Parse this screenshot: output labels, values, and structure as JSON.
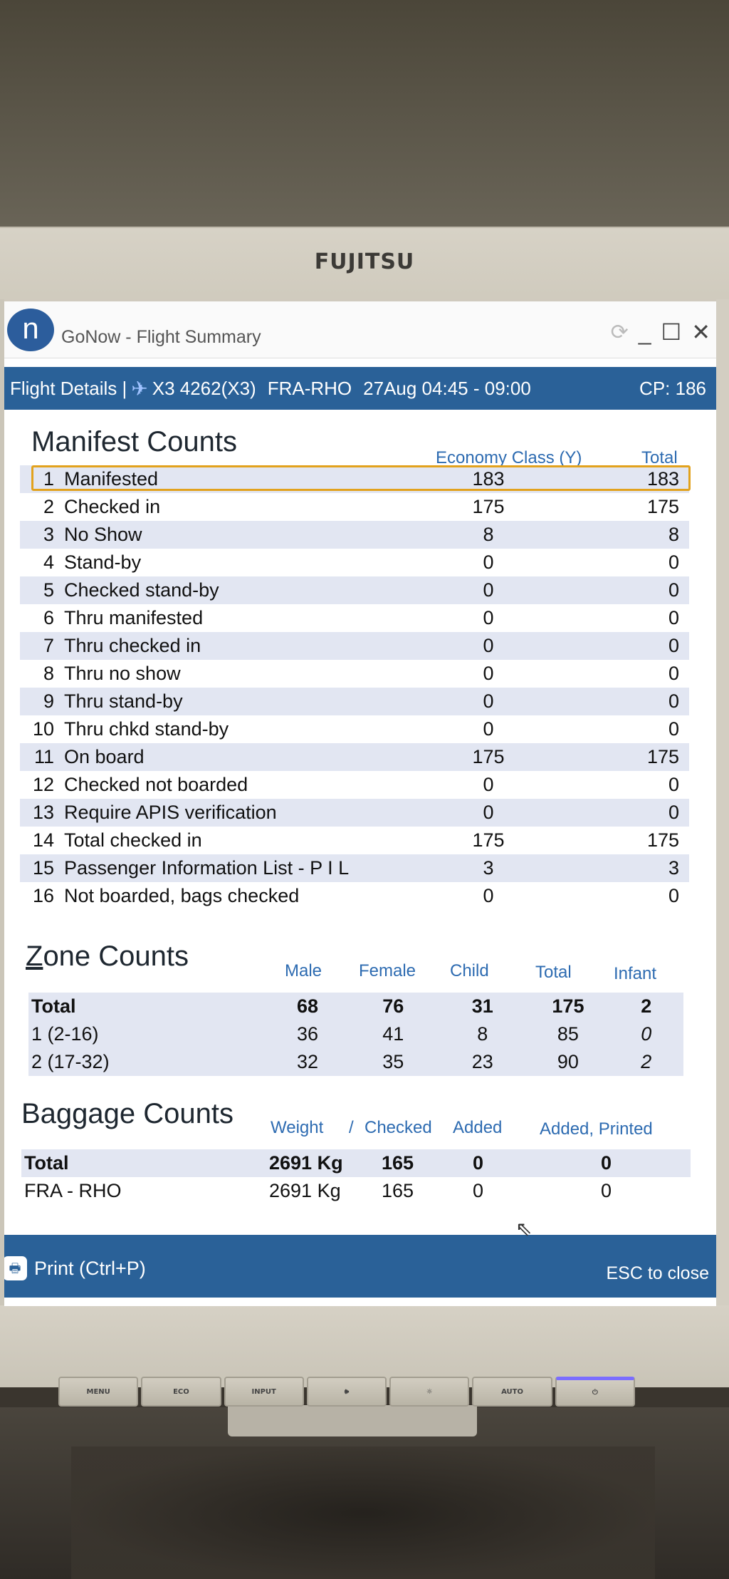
{
  "monitor": {
    "brand": "FUJITSU",
    "buttons": [
      "MENU",
      "ECO",
      "INPUT",
      "🕪",
      "☼",
      "AUTO",
      "⏻"
    ]
  },
  "window": {
    "logo": "n",
    "title": "GoNow - Flight Summary",
    "controls": {
      "refresh": "⟳",
      "minimize": "_",
      "maximize": "☐",
      "close": "✕"
    }
  },
  "header": {
    "label": "Flight Details |",
    "flight": "X3 4262(X3)",
    "route": "FRA-RHO",
    "date": "27Aug 04:45 - 09:00",
    "cp": "CP: 186"
  },
  "manifest": {
    "title": "Manifest Counts",
    "columns": [
      "Economy Class (Y)",
      "Total"
    ],
    "rows": [
      {
        "n": "1",
        "label": "Manifested",
        "economy": "183",
        "total": "183"
      },
      {
        "n": "2",
        "label": "Checked in",
        "economy": "175",
        "total": "175"
      },
      {
        "n": "3",
        "label": "No Show",
        "economy": "8",
        "total": "8"
      },
      {
        "n": "4",
        "label": "Stand-by",
        "economy": "0",
        "total": "0"
      },
      {
        "n": "5",
        "label": "Checked stand-by",
        "economy": "0",
        "total": "0"
      },
      {
        "n": "6",
        "label": "Thru manifested",
        "economy": "0",
        "total": "0"
      },
      {
        "n": "7",
        "label": "Thru checked in",
        "economy": "0",
        "total": "0"
      },
      {
        "n": "8",
        "label": "Thru no show",
        "economy": "0",
        "total": "0"
      },
      {
        "n": "9",
        "label": "Thru stand-by",
        "economy": "0",
        "total": "0"
      },
      {
        "n": "10",
        "label": "Thru chkd stand-by",
        "economy": "0",
        "total": "0"
      },
      {
        "n": "11",
        "label": "On board",
        "economy": "175",
        "total": "175"
      },
      {
        "n": "12",
        "label": "Checked not boarded",
        "economy": "0",
        "total": "0"
      },
      {
        "n": "13",
        "label": "Require APIS verification",
        "economy": "0",
        "total": "0"
      },
      {
        "n": "14",
        "label": "Total checked in",
        "economy": "175",
        "total": "175"
      },
      {
        "n": "15",
        "label": "Passenger Information List - P I L",
        "economy": "3",
        "total": "3"
      },
      {
        "n": "16",
        "label": "Not boarded, bags checked",
        "economy": "0",
        "total": "0"
      }
    ]
  },
  "zone": {
    "title": "Zone Counts",
    "columns": [
      "Male",
      "Female",
      "Child",
      "Total",
      "Infant"
    ],
    "rows": [
      {
        "label": "Total",
        "male": "68",
        "female": "76",
        "child": "31",
        "total": "175",
        "infant": "2"
      },
      {
        "label": "1 (2-16)",
        "male": "36",
        "female": "41",
        "child": "8",
        "total": "85",
        "infant": "0"
      },
      {
        "label": "2 (17-32)",
        "male": "32",
        "female": "35",
        "child": "23",
        "total": "90",
        "infant": "2"
      }
    ]
  },
  "baggage": {
    "title": "Baggage Counts",
    "columns": [
      "Weight",
      "/",
      "Checked",
      "Added",
      "Added, Printed"
    ],
    "rows": [
      {
        "label": "Total",
        "weight": "2691 Kg",
        "checked": "165",
        "added": "0",
        "printed": "0"
      },
      {
        "label": "FRA - RHO",
        "weight": "2691 Kg",
        "checked": "165",
        "added": "0",
        "printed": "0"
      }
    ]
  },
  "footer": {
    "print": "Print (Ctrl+P)",
    "esc": "ESC to close"
  },
  "colors": {
    "header_blue": "#2a6198",
    "highlight": "#e2a21d",
    "column_blue": "#2d6bb1",
    "stripe": "#e2e6f2"
  }
}
